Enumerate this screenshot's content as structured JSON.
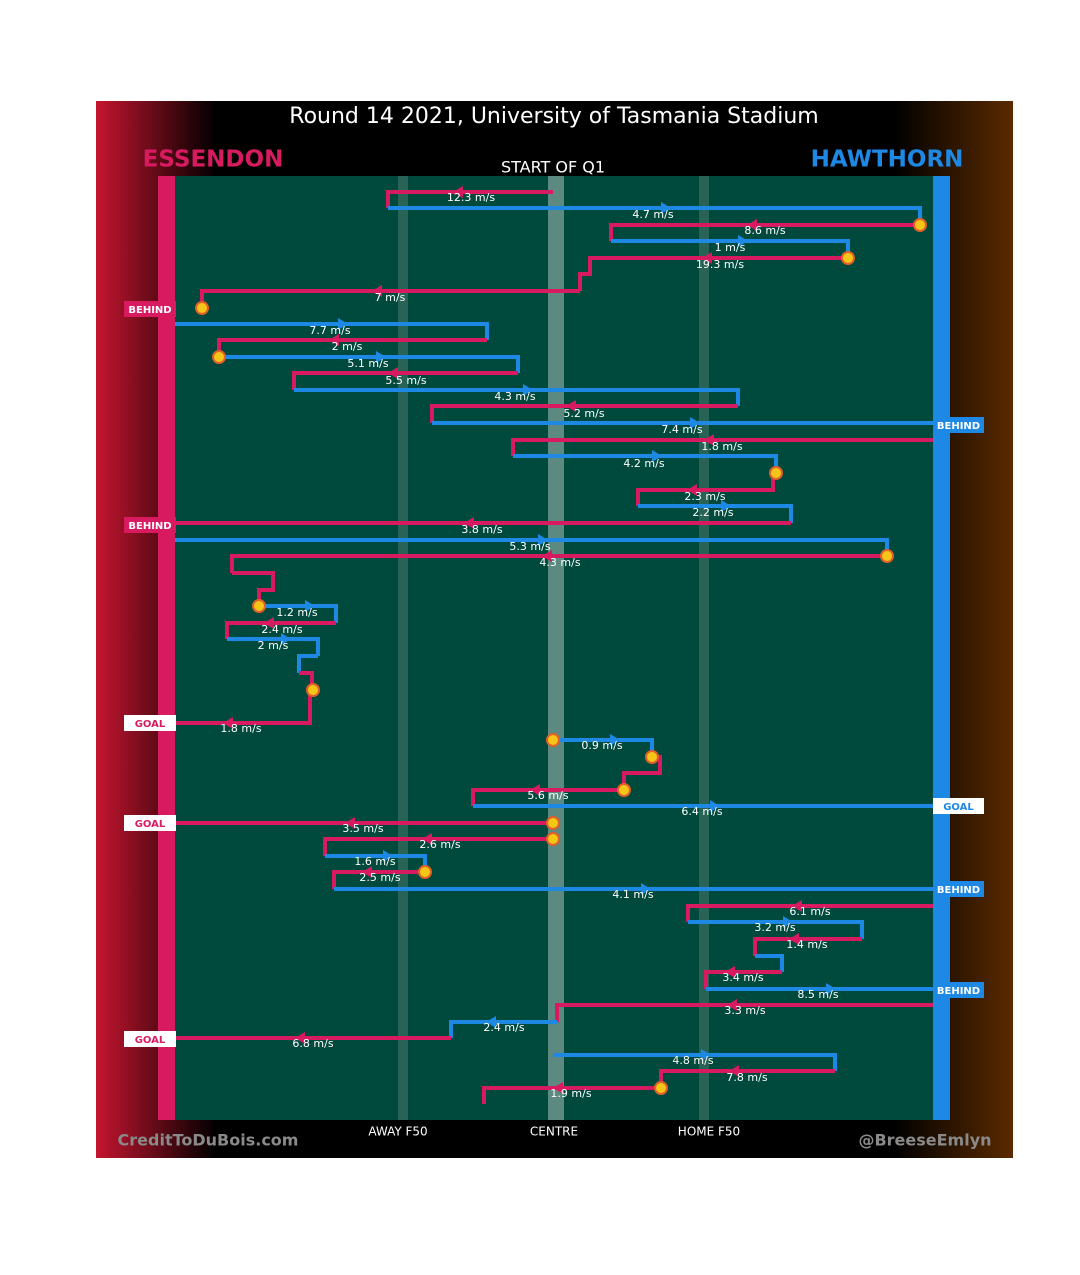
{
  "title": "Round 14 2021, University of Tasmania Stadium",
  "teams": {
    "left": "ESSENDON",
    "right": "HAWTHORN"
  },
  "quarter": "START OF Q1",
  "zones": [
    "AWAY F50",
    "CENTRE",
    "HOME F50"
  ],
  "credits": {
    "left": "CreditToDuBois.com",
    "right": "@BreeseEmlyn"
  },
  "kicks": [
    "12.3 m/s",
    "4.7 m/s",
    "8.6 m/s",
    "1 m/s",
    "19.3 m/s",
    "7 m/s",
    "7.7 m/s",
    "2 m/s",
    "5.1 m/s",
    "5.5 m/s",
    "4.3 m/s",
    "5.2 m/s",
    "7.4 m/s",
    "1.8 m/s",
    "4.2 m/s",
    "2.3 m/s",
    "2.2 m/s",
    "3.8 m/s",
    "5.3 m/s",
    "4.3 m/s",
    "1.2 m/s",
    "2.4 m/s",
    "2 m/s",
    "1.8 m/s",
    "0.9 m/s",
    "5.6 m/s",
    "6.4 m/s",
    "3.5 m/s",
    "2.6 m/s",
    "1.6 m/s",
    "2.5 m/s",
    "4.1 m/s",
    "6.1 m/s",
    "3.2 m/s",
    "1.4 m/s",
    "3.4 m/s",
    "8.5 m/s",
    "3.3 m/s",
    "2.4 m/s",
    "6.8 m/s",
    "4.8 m/s",
    "7.8 m/s",
    "1.9 m/s"
  ],
  "events": [
    "BEHIND",
    "BEHIND",
    "BEHIND",
    "GOAL",
    "GOAL",
    "GOAL",
    "BEHIND",
    "BEHIND",
    "GOAL"
  ]
}
